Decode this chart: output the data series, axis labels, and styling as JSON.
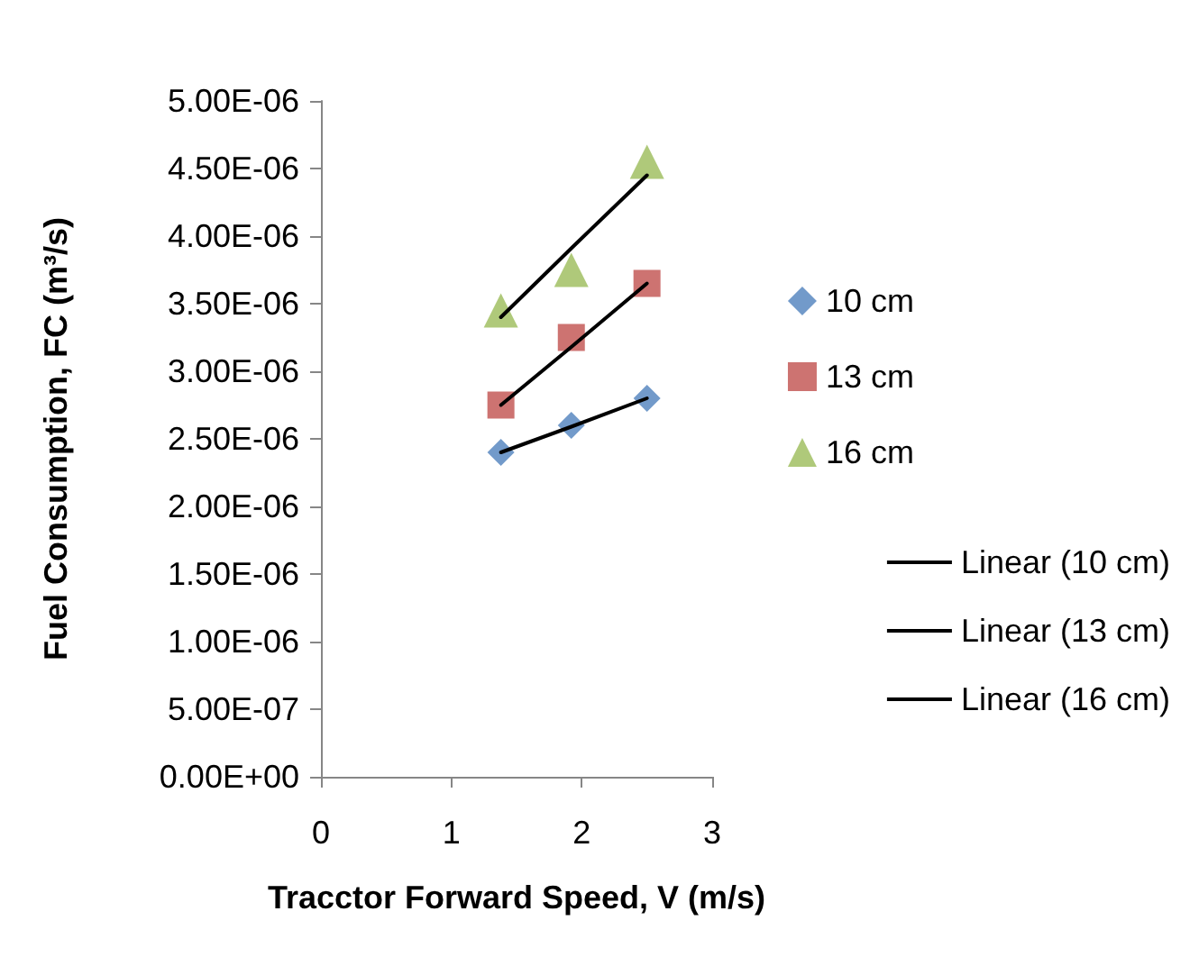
{
  "chart_data": {
    "type": "scatter",
    "xlabel": "Tracctor Forward Speed, V (m/s)",
    "ylabel": "Fuel Consumption, FC (m³/s)",
    "x": [
      1.38,
      1.92,
      2.5
    ],
    "series": [
      {
        "name": "10 cm",
        "color": "#4f81bd",
        "marker": "diamond",
        "values": [
          2.4e-06,
          2.6e-06,
          2.8e-06
        ]
      },
      {
        "name": "13 cm",
        "color": "#c0504d",
        "marker": "square",
        "values": [
          2.75e-06,
          3.25e-06,
          3.65e-06
        ]
      },
      {
        "name": "16 cm",
        "color": "#9bbb59",
        "marker": "triangle",
        "values": [
          3.45e-06,
          3.75e-06,
          4.55e-06
        ]
      },
      {
        "name": "Linear (10 cm)",
        "type": "line",
        "color": "#000000",
        "marker": "none",
        "values": [
          2.4e-06,
          2.59e-06,
          2.8e-06
        ]
      },
      {
        "name": "Linear (13 cm)",
        "type": "line",
        "color": "#000000",
        "marker": "none",
        "values": [
          2.75e-06,
          3.18e-06,
          3.65e-06
        ]
      },
      {
        "name": "Linear (16 cm)",
        "type": "line",
        "color": "#000000",
        "marker": "none",
        "values": [
          3.4e-06,
          3.91e-06,
          4.45e-06
        ]
      }
    ],
    "xlim": [
      0,
      3
    ],
    "xticks": [
      0,
      1,
      2,
      3
    ],
    "ylim": [
      0,
      5e-06
    ],
    "yticks": [
      {
        "value": 0,
        "label": "0.00E+00"
      },
      {
        "value": 5e-07,
        "label": "5.00E-07"
      },
      {
        "value": 1e-06,
        "label": "1.00E-06"
      },
      {
        "value": 1.5e-06,
        "label": "1.50E-06"
      },
      {
        "value": 2e-06,
        "label": "2.00E-06"
      },
      {
        "value": 2.5e-06,
        "label": "2.50E-06"
      },
      {
        "value": 3e-06,
        "label": "3.00E-06"
      },
      {
        "value": 3.5e-06,
        "label": "3.50E-06"
      },
      {
        "value": 4e-06,
        "label": "4.00E-06"
      },
      {
        "value": 4.5e-06,
        "label": "4.50E-06"
      },
      {
        "value": 5e-06,
        "label": "5.00E-06"
      }
    ],
    "grid": false,
    "legend": "right"
  }
}
